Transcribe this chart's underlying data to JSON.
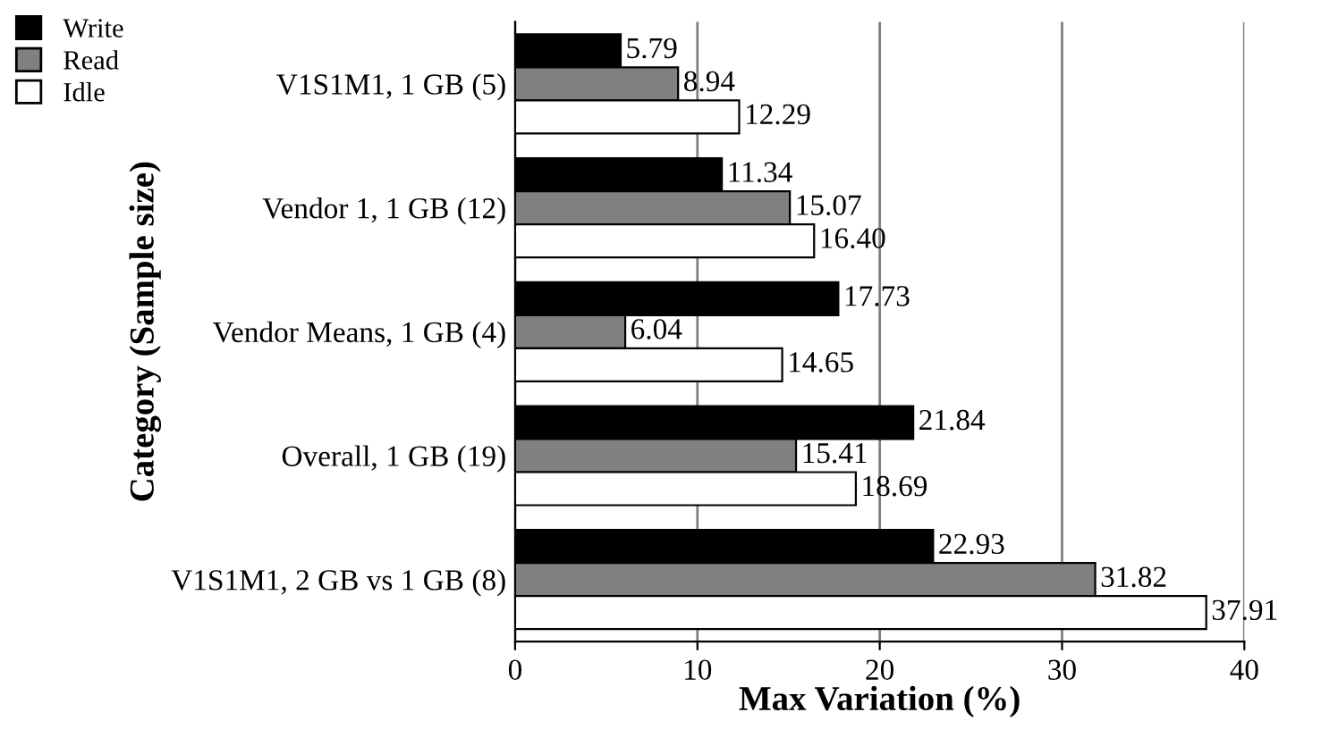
{
  "chart_data": {
    "type": "bar",
    "orientation": "horizontal",
    "xlabel": "Max Variation (%)",
    "ylabel": "Category (Sample size)",
    "categories": [
      "V1S1M1, 1 GB (5)",
      "Vendor 1, 1 GB (12)",
      "Vendor Means, 1 GB (4)",
      "Overall, 1 GB (19)",
      "V1S1M1, 2 GB vs 1 GB (8)"
    ],
    "series": [
      {
        "name": "Write",
        "color": "#000000",
        "values": [
          5.79,
          11.34,
          17.73,
          21.84,
          22.93
        ]
      },
      {
        "name": "Read",
        "color": "#808080",
        "values": [
          8.94,
          15.07,
          6.04,
          15.41,
          31.82
        ]
      },
      {
        "name": "Idle",
        "color": "#ffffff",
        "values": [
          12.29,
          16.4,
          14.65,
          18.69,
          37.91
        ]
      }
    ],
    "value_labels": [
      [
        "5.79",
        "11.34",
        "17.73",
        "21.84",
        "22.93"
      ],
      [
        "8.94",
        "15.07",
        "6.04",
        "15.41",
        "31.82"
      ],
      [
        "12.29",
        "16.40",
        "14.65",
        "18.69",
        "37.91"
      ]
    ],
    "xlim": [
      0,
      40
    ],
    "xticks": [
      0,
      10,
      20,
      30,
      40
    ],
    "grid": "x",
    "legend": "top left"
  }
}
